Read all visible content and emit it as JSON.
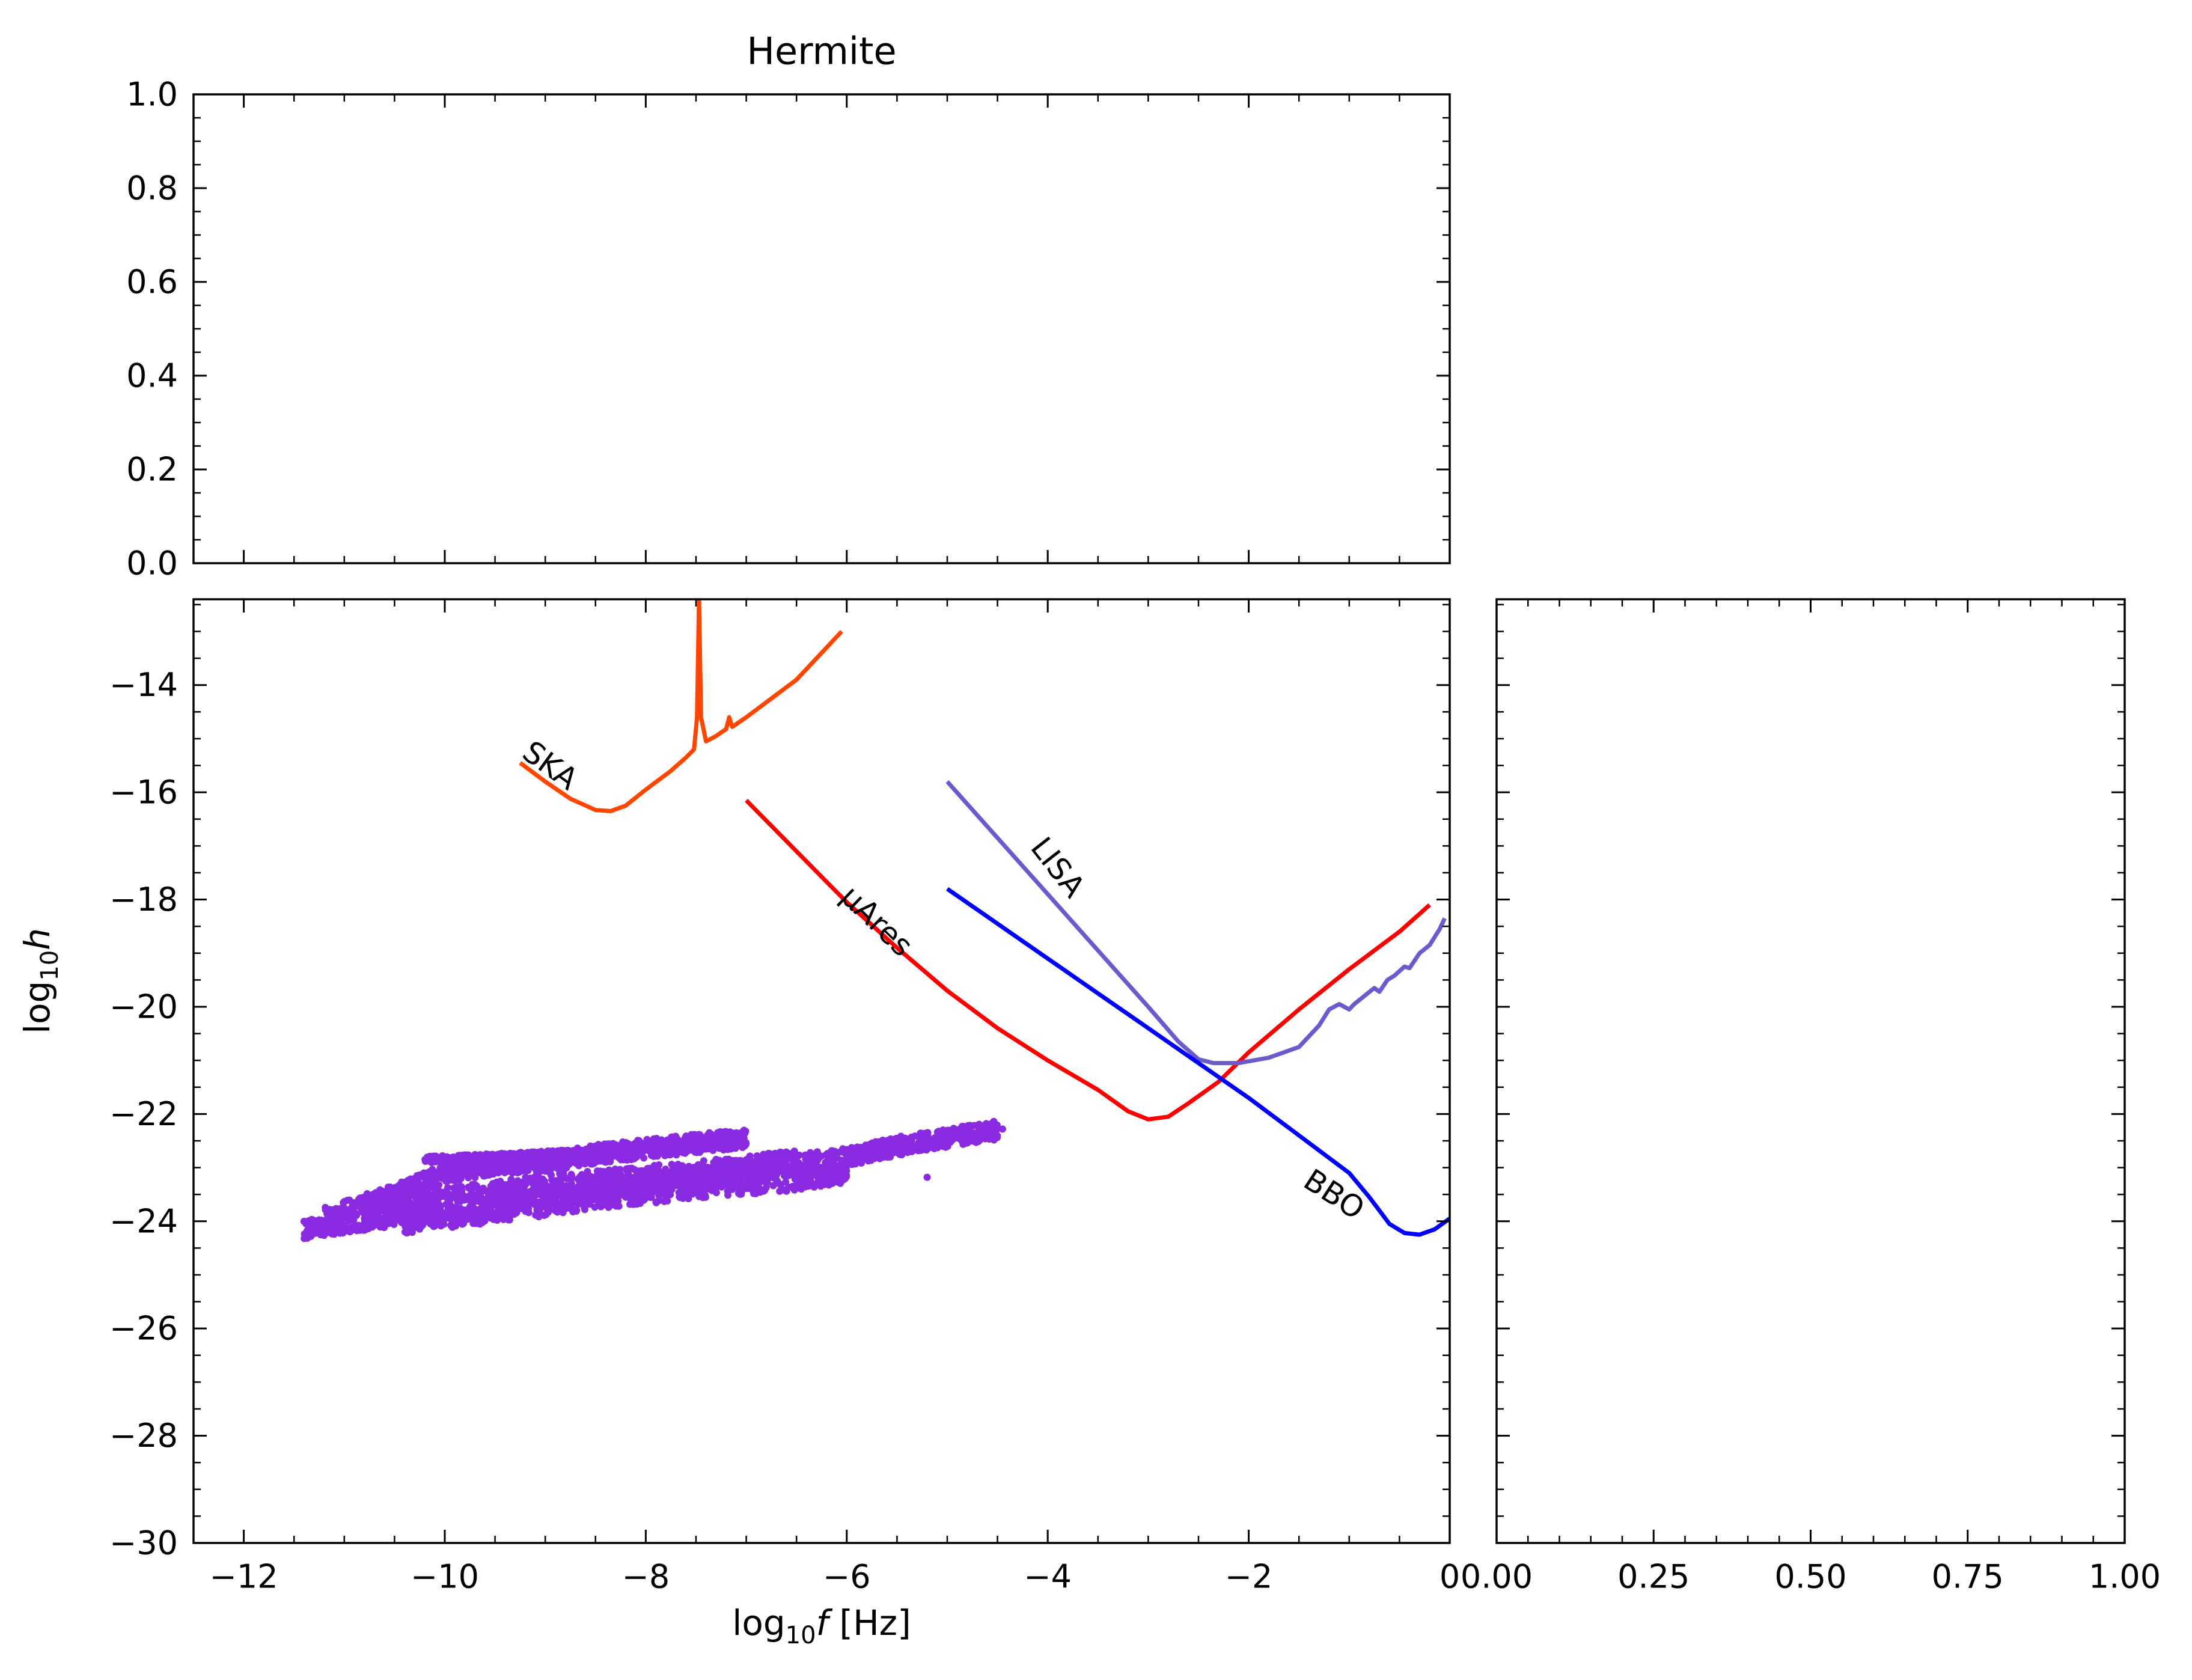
{
  "chart_data": [
    {
      "panel": "top",
      "type": "scatter",
      "title": "Hermite",
      "xlim": [
        -12.5,
        0
      ],
      "ylim": [
        0.0,
        1.0
      ],
      "y_ticks": [
        "0.0",
        "0.2",
        "0.4",
        "0.6",
        "0.8",
        "1.0"
      ],
      "series": []
    },
    {
      "panel": "main",
      "type": "line",
      "xlabel_pre": "log",
      "xlabel_sub": "10",
      "xlabel_var": "f",
      "xlabel_unit": " [Hz]",
      "ylabel_pre": "log",
      "ylabel_sub": "10",
      "ylabel_var": "h",
      "xlim": [
        -12.5,
        0
      ],
      "ylim": [
        -30,
        -12.4
      ],
      "x_ticks": [
        "−12",
        "−10",
        "−8",
        "−6",
        "−4",
        "−2",
        "0"
      ],
      "y_ticks": [
        "−30",
        "−28",
        "−26",
        "−24",
        "−22",
        "−20",
        "−18",
        "−16",
        "−14"
      ],
      "series": [
        {
          "name": "SKA",
          "color": "#ff4500",
          "points": [
            [
              -9.25,
              -15.45
            ],
            [
              -9.0,
              -15.8
            ],
            [
              -8.75,
              -16.12
            ],
            [
              -8.5,
              -16.33
            ],
            [
              -8.35,
              -16.35
            ],
            [
              -8.2,
              -16.25
            ],
            [
              -8.0,
              -15.95
            ],
            [
              -7.75,
              -15.6
            ],
            [
              -7.6,
              -15.35
            ],
            [
              -7.52,
              -15.2
            ],
            [
              -7.49,
              -14.6
            ],
            [
              -7.47,
              -12.4
            ],
            [
              -7.45,
              -14.6
            ],
            [
              -7.4,
              -15.05
            ],
            [
              -7.3,
              -14.95
            ],
            [
              -7.2,
              -14.82
            ],
            [
              -7.17,
              -14.6
            ],
            [
              -7.14,
              -14.78
            ],
            [
              -7.0,
              -14.6
            ],
            [
              -6.5,
              -13.9
            ],
            [
              -6.05,
              -13.0
            ]
          ]
        },
        {
          "name": "μAres",
          "color": "#ff0000",
          "points": [
            [
              -7.0,
              -16.15
            ],
            [
              -6.5,
              -17.1
            ],
            [
              -6.0,
              -18.05
            ],
            [
              -5.5,
              -18.9
            ],
            [
              -5.0,
              -19.7
            ],
            [
              -4.5,
              -20.4
            ],
            [
              -4.0,
              -21.0
            ],
            [
              -3.5,
              -21.55
            ],
            [
              -3.2,
              -21.95
            ],
            [
              -3.0,
              -22.1
            ],
            [
              -2.8,
              -22.05
            ],
            [
              -2.6,
              -21.8
            ],
            [
              -2.3,
              -21.4
            ],
            [
              -2.0,
              -20.85
            ],
            [
              -1.5,
              -20.05
            ],
            [
              -1.0,
              -19.3
            ],
            [
              -0.5,
              -18.6
            ],
            [
              -0.2,
              -18.1
            ]
          ]
        },
        {
          "name": "LISA",
          "color": "#6a5acd",
          "points": [
            [
              -5.0,
              -15.8
            ],
            [
              -4.5,
              -16.85
            ],
            [
              -4.0,
              -17.9
            ],
            [
              -3.5,
              -18.95
            ],
            [
              -3.0,
              -20.0
            ],
            [
              -2.7,
              -20.65
            ],
            [
              -2.5,
              -20.98
            ],
            [
              -2.35,
              -21.05
            ],
            [
              -2.1,
              -21.05
            ],
            [
              -1.8,
              -20.95
            ],
            [
              -1.5,
              -20.75
            ],
            [
              -1.3,
              -20.35
            ],
            [
              -1.2,
              -20.05
            ],
            [
              -1.1,
              -19.95
            ],
            [
              -1.0,
              -20.05
            ],
            [
              -0.95,
              -19.95
            ],
            [
              -0.85,
              -19.8
            ],
            [
              -0.75,
              -19.65
            ],
            [
              -0.7,
              -19.72
            ],
            [
              -0.62,
              -19.5
            ],
            [
              -0.55,
              -19.42
            ],
            [
              -0.45,
              -19.25
            ],
            [
              -0.4,
              -19.28
            ],
            [
              -0.3,
              -19.0
            ],
            [
              -0.2,
              -18.85
            ],
            [
              -0.1,
              -18.55
            ],
            [
              -0.05,
              -18.35
            ]
          ]
        },
        {
          "name": "BBO",
          "color": "#0000ff",
          "points": [
            [
              -5.0,
              -17.8
            ],
            [
              -4.5,
              -18.45
            ],
            [
              -4.0,
              -19.1
            ],
            [
              -3.5,
              -19.75
            ],
            [
              -3.0,
              -20.4
            ],
            [
              -2.5,
              -21.05
            ],
            [
              -2.0,
              -21.7
            ],
            [
              -1.5,
              -22.4
            ],
            [
              -1.0,
              -23.1
            ],
            [
              -0.8,
              -23.55
            ],
            [
              -0.6,
              -24.05
            ],
            [
              -0.45,
              -24.22
            ],
            [
              -0.3,
              -24.25
            ],
            [
              -0.15,
              -24.15
            ],
            [
              0.0,
              -23.95
            ]
          ]
        },
        {
          "name": "",
          "kind": "scatter-band",
          "color": "#8a2be2",
          "bands": [
            [
              [
                -11.4,
                -24.15
              ],
              [
                -11.0,
                -24.05
              ],
              [
                -10.0,
                -23.8
              ],
              [
                -9.0,
                -23.55
              ],
              [
                -8.0,
                -23.3
              ],
              [
                -7.0,
                -23.05
              ],
              [
                -6.0,
                -22.8
              ],
              [
                -5.5,
                -22.6
              ],
              [
                -5.0,
                -22.45
              ],
              [
                -4.5,
                -22.3
              ]
            ],
            [
              [
                -11.2,
                -23.9
              ],
              [
                -10.5,
                -23.5
              ],
              [
                -10.0,
                -23.1
              ],
              [
                -9.5,
                -22.95
              ],
              [
                -9.0,
                -22.9
              ],
              [
                -8.5,
                -22.75
              ],
              [
                -8.0,
                -22.65
              ],
              [
                -7.5,
                -22.55
              ],
              [
                -7.0,
                -22.45
              ]
            ],
            [
              [
                -10.8,
                -24.0
              ],
              [
                -10.0,
                -23.55
              ],
              [
                -9.0,
                -23.3
              ],
              [
                -8.0,
                -23.15
              ],
              [
                -7.0,
                -22.95
              ],
              [
                -6.5,
                -22.85
              ]
            ],
            [
              [
                -10.4,
                -24.05
              ],
              [
                -9.5,
                -23.85
              ],
              [
                -8.5,
                -23.6
              ],
              [
                -7.5,
                -23.4
              ],
              [
                -6.5,
                -23.25
              ],
              [
                -6.0,
                -23.1
              ]
            ],
            [
              [
                -10.2,
                -22.85
              ],
              [
                -9.5,
                -22.8
              ],
              [
                -9.0,
                -22.75
              ],
              [
                -8.5,
                -22.7
              ],
              [
                -8.0,
                -22.62
              ],
              [
                -7.5,
                -22.55
              ]
            ]
          ]
        }
      ],
      "labels": [
        {
          "text": "SKA",
          "x": -8.95,
          "y": -15.5,
          "angle": 36,
          "color": "#ff4500"
        },
        {
          "text": "μAres",
          "x": -5.7,
          "y": -18.4,
          "angle": 44,
          "color": "#ff0000"
        },
        {
          "text": "LISA",
          "x": -3.9,
          "y": -17.4,
          "angle": 52,
          "color": "#6a5acd"
        },
        {
          "text": "BBO",
          "x": -1.15,
          "y": -23.5,
          "angle": 33,
          "color": "#0000ff"
        }
      ]
    },
    {
      "panel": "right",
      "type": "scatter",
      "xlim": [
        0.0,
        1.0
      ],
      "x_ticks": [
        "0.00",
        "0.25",
        "0.50",
        "0.75",
        "1.00"
      ],
      "series": []
    }
  ]
}
